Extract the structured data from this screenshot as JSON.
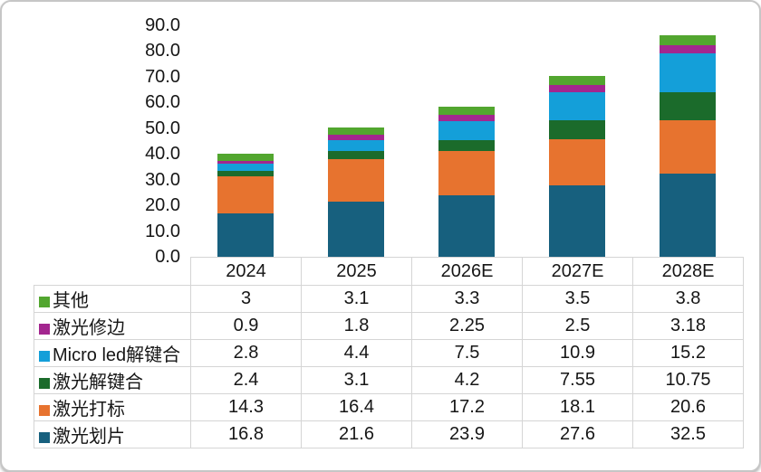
{
  "chart_data": {
    "type": "bar",
    "variant": "stacked-column-with-data-table",
    "title": "",
    "xlabel": "",
    "ylabel": "",
    "grid": false,
    "legend_position": "table-row-headers-left",
    "categories": [
      "2024",
      "2025",
      "2026E",
      "2027E",
      "2028E"
    ],
    "series": [
      {
        "key": "other",
        "name": "其他",
        "color": "#52A62F",
        "values": [
          3,
          3.1,
          3.3,
          3.5,
          3.8
        ]
      },
      {
        "key": "laser-trimming",
        "name": "激光修边",
        "color": "#A3268F",
        "values": [
          0.9,
          1.8,
          2.25,
          2.5,
          3.18
        ]
      },
      {
        "key": "micro-led-debonding",
        "name": "Micro led解键合",
        "color": "#149FD9",
        "values": [
          2.8,
          4.4,
          7.5,
          10.9,
          15.2
        ]
      },
      {
        "key": "laser-debonding",
        "name": "激光解键合",
        "color": "#1B6B2B",
        "values": [
          2.4,
          3.1,
          4.2,
          7.55,
          10.75
        ]
      },
      {
        "key": "laser-marking",
        "name": "激光打标",
        "color": "#E7732F",
        "values": [
          14.3,
          16.4,
          17.2,
          18.1,
          20.6
        ]
      },
      {
        "key": "laser-dicing",
        "name": "激光划片",
        "color": "#17607E",
        "values": [
          16.8,
          21.6,
          23.9,
          27.6,
          32.5
        ]
      }
    ],
    "stack_order_bottom_to_top": [
      "激光划片",
      "激光打标",
      "激光解键合",
      "Micro led解键合",
      "激光修边",
      "其他"
    ],
    "y_axis": {
      "min": 0,
      "max": 90,
      "step": 10,
      "ylim": [
        0,
        90
      ],
      "tick_labels": [
        "0.0",
        "10.0",
        "20.0",
        "30.0",
        "40.0",
        "50.0",
        "60.0",
        "70.0",
        "80.0",
        "90.0"
      ]
    },
    "table": {
      "colors": {
        "border": "#d5d5d5",
        "text": "#161616",
        "background": "#ffffff"
      }
    }
  }
}
